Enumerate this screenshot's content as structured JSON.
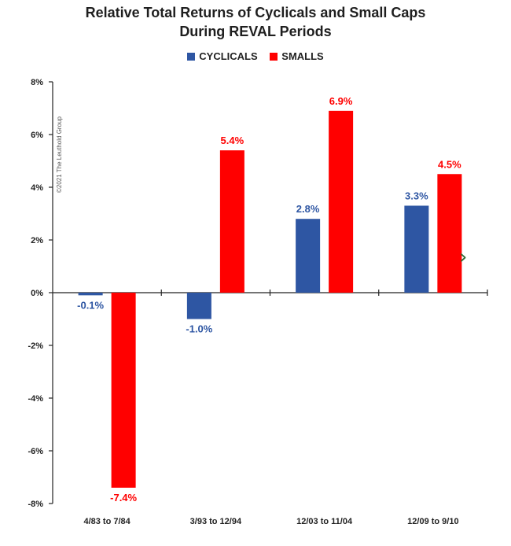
{
  "chart_data": {
    "type": "bar",
    "title_lines": [
      "Relative Total Returns of Cyclicals and Small Caps",
      "During REVAL Periods"
    ],
    "categories": [
      "4/83 to 7/84",
      "3/93 to 12/94",
      "12/03 to 11/04",
      "12/09 to 9/10"
    ],
    "series": [
      {
        "name": "CYCLICALS",
        "color": "#2e56a3",
        "values": [
          -0.1,
          -1.0,
          2.8,
          3.3
        ],
        "labels": [
          "-0.1%",
          "-1.0%",
          "2.8%",
          "3.3%"
        ]
      },
      {
        "name": "SMALLS",
        "color": "#ff0000",
        "values": [
          -7.4,
          5.4,
          6.9,
          4.5
        ],
        "labels": [
          "-7.4%",
          "5.4%",
          "6.9%",
          "4.5%"
        ]
      }
    ],
    "ylim": [
      -8,
      8
    ],
    "yticks": [
      8,
      6,
      4,
      2,
      0,
      -2,
      -4,
      -6,
      -8
    ],
    "ytick_labels": [
      "8%",
      "6%",
      "4%",
      "2%",
      "0%",
      "-2%",
      "-4%",
      "-6%",
      "-8%"
    ],
    "xlabel": "",
    "ylabel": "",
    "legend_position": "top",
    "annotation": "©2021 The Leuthold Group"
  },
  "nav": {
    "next_icon": "chevron-right-icon",
    "glyph": "›",
    "color": "#2e6b34"
  }
}
